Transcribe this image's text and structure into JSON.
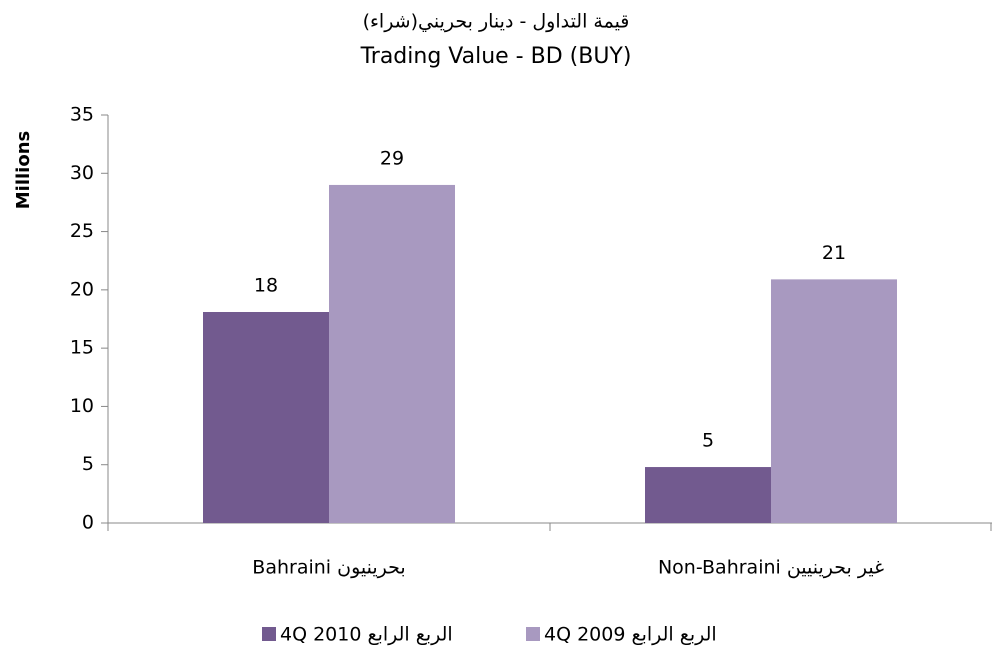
{
  "chart_data": {
    "type": "bar",
    "title": "قيمة التداول - دينار بحريني(شراء)",
    "subtitle": "Trading Value - BD (BUY)",
    "y_label": "Millions",
    "categories": [
      "Bahraini  بحرينيون",
      "Non-Bahraini غير بحرينيين"
    ],
    "series": [
      {
        "name": "4Q 2010 الربع الرابع",
        "color": "#725a8f",
        "values": [
          18.1,
          4.8
        ],
        "value_labels": [
          "18",
          "5"
        ]
      },
      {
        "name": "4Q 2009 الربع الرابع",
        "color": "#a899c0",
        "values": [
          29,
          20.9
        ],
        "value_labels": [
          "29",
          "21"
        ]
      }
    ],
    "ylim": [
      0,
      35
    ],
    "yticks": [
      0,
      5,
      10,
      15,
      20,
      25,
      30,
      35
    ],
    "grid": false,
    "legend": "bottom"
  }
}
